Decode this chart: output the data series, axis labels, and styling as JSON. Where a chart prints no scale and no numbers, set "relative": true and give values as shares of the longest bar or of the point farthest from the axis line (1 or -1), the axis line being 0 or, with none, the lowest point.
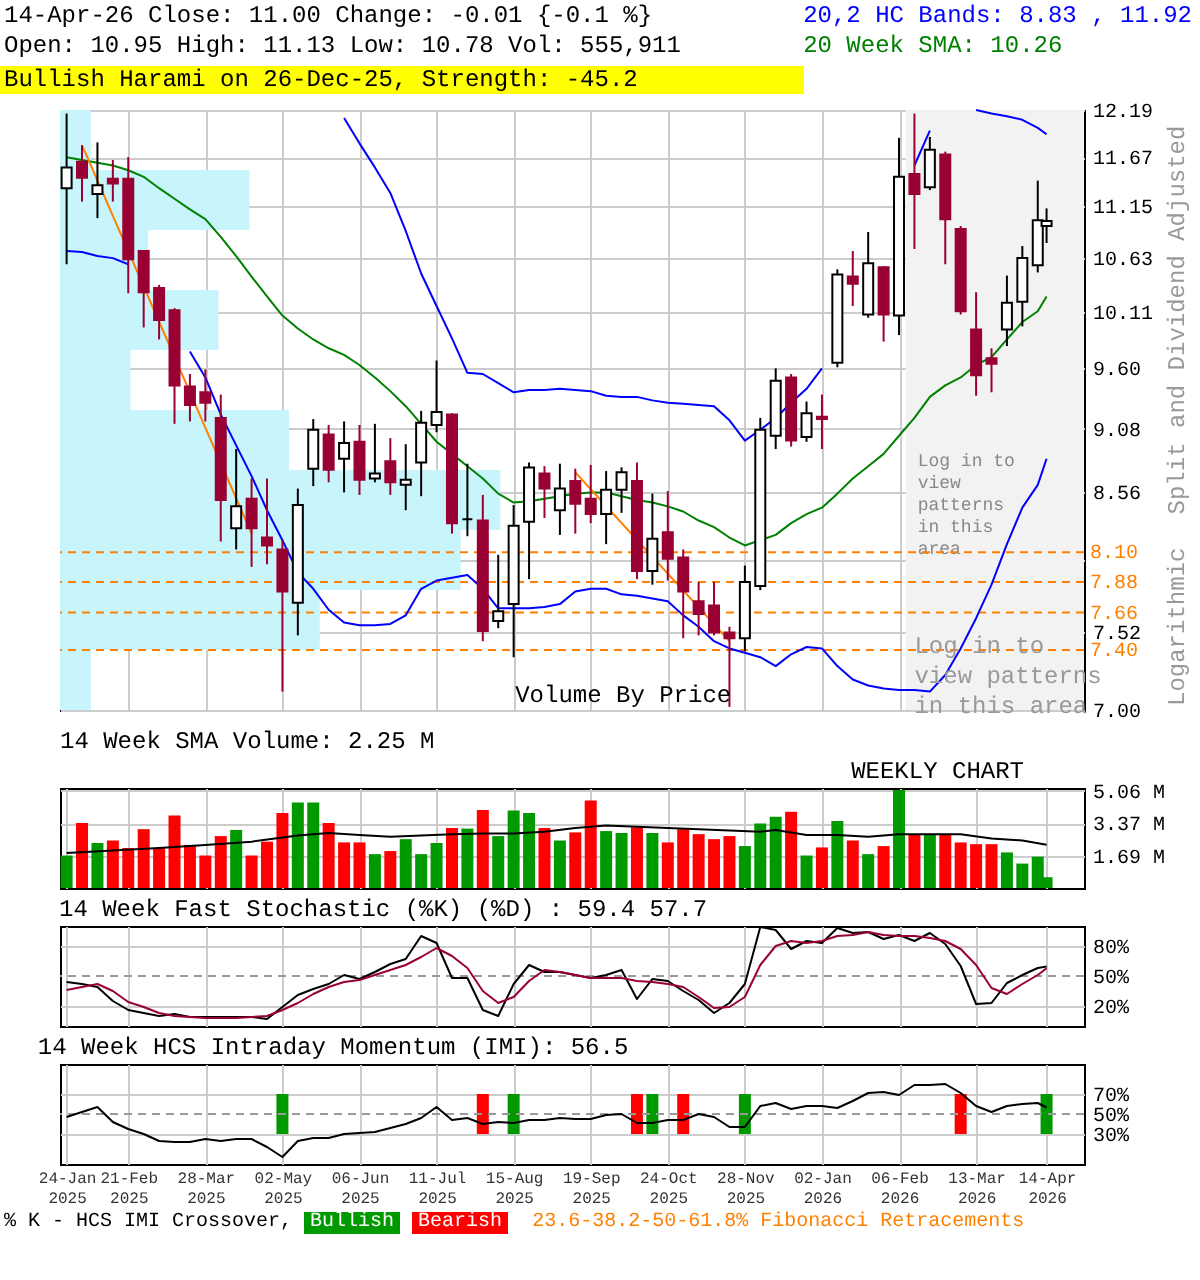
{
  "chart_data": [
    {
      "type": "candlestick",
      "title": "14-Apr-26 Close: 11.00 Change: -0.01 {-0.1 %}",
      "subtitle": "Open: 10.95 High: 11.13 Low: 10.78 Vol: 555,911",
      "ylabel": "Split and Dividend Adjusted",
      "annotations": [
        "Bullish Harami on 26-Dec-25, Strength: -45.2",
        "Logarithmic",
        "23.6-38.2-50-61.8% Fibonacci Retracements",
        "Volume By Price",
        {
          "text": "Log in to view patterns in this area",
          "x": "2026-02-13",
          "y": 7.5
        }
      ],
      "x": [
        "2025-01-24",
        "2025-01-31",
        "2025-02-07",
        "2025-02-14",
        "2025-02-21",
        "2025-02-28",
        "2025-03-07",
        "2025-03-14",
        "2025-03-21",
        "2025-03-28",
        "2025-04-04",
        "2025-04-11",
        "2025-04-18",
        "2025-04-25",
        "2025-05-02",
        "2025-05-09",
        "2025-05-16",
        "2025-05-23",
        "2025-05-30",
        "2025-06-06",
        "2025-06-13",
        "2025-06-20",
        "2025-06-27",
        "2025-07-04",
        "2025-07-11",
        "2025-07-18",
        "2025-07-25",
        "2025-08-01",
        "2025-08-08",
        "2025-08-15",
        "2025-08-22",
        "2025-08-29",
        "2025-09-05",
        "2025-09-12",
        "2025-09-19",
        "2025-09-26",
        "2025-10-03",
        "2025-10-10",
        "2025-10-17",
        "2025-10-24",
        "2025-10-31",
        "2025-11-07",
        "2025-11-14",
        "2025-11-21",
        "2025-11-28",
        "2025-12-05",
        "2025-12-12",
        "2025-12-19",
        "2025-12-26",
        "2026-01-02",
        "2026-01-09",
        "2026-01-16",
        "2026-01-23",
        "2026-01-30",
        "2026-02-06",
        "2026-02-13",
        "2026-02-20",
        "2026-02-27",
        "2026-03-06",
        "2026-03-13",
        "2026-03-20",
        "2026-03-27",
        "2026-04-03",
        "2026-04-10",
        "2026-04-14"
      ],
      "ohlc": [
        [
          11.34,
          12.15,
          10.57,
          11.56
        ],
        [
          11.62,
          11.8,
          11.2,
          11.45
        ],
        [
          11.28,
          11.83,
          11.03,
          11.37
        ],
        [
          11.44,
          11.64,
          11.2,
          11.39
        ],
        [
          11.44,
          11.67,
          10.29,
          10.62
        ],
        [
          10.7,
          10.71,
          9.97,
          10.3
        ],
        [
          10.34,
          10.37,
          9.86,
          10.04
        ],
        [
          10.13,
          10.15,
          9.12,
          9.45
        ],
        [
          9.44,
          9.55,
          9.14,
          9.28
        ],
        [
          9.39,
          9.59,
          9.14,
          9.3
        ],
        [
          9.17,
          9.37,
          8.18,
          8.5
        ],
        [
          8.28,
          8.91,
          8.12,
          8.45
        ],
        [
          8.51,
          8.67,
          7.99,
          8.28
        ],
        [
          8.21,
          8.67,
          8.01,
          8.15
        ],
        [
          8.12,
          8.19,
          7.12,
          7.81
        ],
        [
          7.73,
          8.59,
          7.5,
          8.46
        ],
        [
          8.75,
          9.16,
          8.61,
          9.07
        ],
        [
          9.03,
          9.11,
          8.64,
          8.74
        ],
        [
          8.83,
          9.14,
          8.56,
          8.96
        ],
        [
          8.97,
          9.11,
          8.54,
          8.66
        ],
        [
          8.67,
          9.12,
          8.64,
          8.71
        ],
        [
          8.81,
          9.0,
          8.54,
          8.64
        ],
        [
          8.62,
          8.95,
          8.42,
          8.66
        ],
        [
          8.8,
          9.23,
          8.53,
          9.13
        ],
        [
          9.11,
          9.67,
          9.05,
          9.22
        ],
        [
          9.2,
          9.21,
          8.24,
          8.32
        ],
        [
          8.35,
          8.79,
          8.22,
          8.35
        ],
        [
          8.34,
          8.54,
          7.46,
          7.53
        ],
        [
          7.6,
          8.08,
          7.55,
          7.67
        ],
        [
          7.72,
          8.46,
          7.35,
          8.3
        ],
        [
          8.33,
          8.8,
          7.9,
          8.76
        ],
        [
          8.71,
          8.77,
          8.36,
          8.59
        ],
        [
          8.42,
          8.79,
          8.23,
          8.59
        ],
        [
          8.65,
          8.75,
          8.24,
          8.47
        ],
        [
          8.51,
          8.78,
          8.32,
          8.39
        ],
        [
          8.39,
          8.73,
          8.16,
          8.58
        ],
        [
          8.58,
          8.76,
          8.4,
          8.72
        ],
        [
          8.65,
          8.8,
          7.9,
          7.96
        ],
        [
          7.96,
          8.55,
          7.86,
          8.2
        ],
        [
          8.25,
          8.57,
          7.89,
          8.05
        ],
        [
          8.06,
          8.12,
          7.48,
          7.81
        ],
        [
          7.74,
          7.88,
          7.5,
          7.65
        ],
        [
          7.71,
          7.88,
          7.5,
          7.52
        ],
        [
          7.52,
          7.56,
          7.02,
          7.48
        ],
        [
          7.48,
          8.0,
          7.39,
          7.88
        ],
        [
          7.85,
          9.17,
          7.82,
          9.07
        ],
        [
          9.02,
          9.6,
          8.91,
          9.49
        ],
        [
          9.52,
          9.55,
          8.93,
          8.98
        ],
        [
          9.01,
          9.31,
          8.97,
          9.21
        ],
        [
          9.18,
          9.37,
          8.91,
          9.16
        ],
        [
          9.65,
          10.52,
          9.61,
          10.47
        ],
        [
          10.45,
          10.7,
          10.17,
          10.38
        ],
        [
          10.09,
          10.89,
          10.06,
          10.58
        ],
        [
          10.54,
          10.55,
          9.84,
          10.09
        ],
        [
          10.08,
          11.88,
          9.9,
          11.46
        ],
        [
          11.49,
          12.15,
          10.72,
          11.28
        ],
        [
          11.35,
          11.89,
          11.32,
          11.75
        ],
        [
          11.7,
          11.73,
          10.57,
          11.02
        ],
        [
          10.92,
          10.95,
          10.09,
          10.12
        ],
        [
          9.95,
          10.3,
          9.36,
          9.54
        ],
        [
          9.69,
          9.78,
          9.39,
          9.64
        ],
        [
          9.95,
          10.46,
          9.8,
          10.2
        ],
        [
          10.21,
          10.75,
          9.98,
          10.63
        ],
        [
          10.56,
          11.42,
          10.49,
          11.01
        ],
        [
          10.95,
          11.13,
          10.78,
          11.0
        ]
      ],
      "series": [
        {
          "name": "20,2 HC Bands: 8.83 , 11.92",
          "type": "line",
          "color": "#0000ff",
          "values": [
            null,
            null,
            null,
            null,
            null,
            null,
            null,
            null,
            null,
            null,
            null,
            null,
            null,
            null,
            null,
            null,
            null,
            null,
            12.1,
            11.82,
            11.56,
            11.29,
            10.9,
            10.48,
            10.17,
            9.87,
            9.56,
            9.55,
            9.47,
            9.39,
            9.41,
            9.41,
            9.42,
            9.41,
            9.4,
            9.36,
            9.35,
            9.35,
            9.32,
            9.3,
            9.29,
            9.28,
            9.27,
            9.15,
            8.98,
            9.07,
            9.17,
            9.3,
            9.42,
            9.6,
            null,
            null,
            null,
            null,
            null,
            11.58,
            11.96,
            null,
            null,
            12.19,
            12.15,
            12.12,
            12.08,
            11.99,
            11.92
          ]
        },
        {
          "type": "line",
          "color": "#0000ff",
          "values": [
            10.7,
            10.69,
            10.65,
            10.63,
            10.57,
            null,
            null,
            null,
            9.75,
            9.52,
            9.2,
            8.94,
            8.69,
            8.42,
            8.19,
            7.95,
            7.83,
            7.68,
            7.59,
            7.57,
            7.57,
            7.58,
            7.64,
            7.83,
            7.89,
            7.91,
            7.93,
            7.83,
            7.69,
            7.69,
            7.69,
            7.7,
            7.72,
            7.81,
            7.83,
            7.83,
            7.79,
            7.78,
            7.76,
            7.74,
            7.64,
            7.56,
            7.46,
            7.41,
            7.38,
            7.35,
            7.29,
            7.37,
            7.42,
            7.41,
            7.29,
            7.2,
            7.16,
            7.14,
            7.13,
            7.13,
            7.12,
            7.23,
            7.41,
            7.62,
            7.86,
            8.16,
            8.44,
            8.62,
            8.83
          ]
        },
        {
          "name": "20 Week SMA: 10.26",
          "type": "line",
          "color": "#008000",
          "values": [
            11.67,
            11.64,
            11.61,
            11.58,
            11.53,
            11.46,
            11.34,
            11.23,
            11.12,
            11.02,
            10.84,
            10.65,
            10.45,
            10.26,
            10.08,
            9.96,
            9.86,
            9.78,
            9.72,
            9.63,
            9.52,
            9.4,
            9.27,
            9.12,
            8.97,
            8.87,
            8.77,
            8.67,
            8.55,
            8.48,
            8.49,
            8.51,
            8.53,
            8.55,
            8.56,
            8.56,
            8.53,
            8.5,
            8.48,
            8.45,
            8.41,
            8.34,
            8.29,
            8.21,
            8.15,
            8.19,
            8.23,
            8.32,
            8.39,
            8.44,
            8.55,
            8.67,
            8.77,
            8.87,
            9.02,
            9.17,
            9.35,
            9.45,
            9.52,
            9.63,
            9.7,
            9.86,
            10.02,
            10.12,
            10.26
          ]
        },
        {
          "type": "line",
          "color": "#ff8000",
          "x": [
            "2025-01-31",
            "2025-04-18"
          ],
          "values": [
            11.8,
            8.24
          ]
        },
        {
          "type": "line",
          "color": "#ff8000",
          "x": [
            "2025-09-12",
            "2025-11-21"
          ],
          "values": [
            8.72,
            7.46
          ]
        }
      ],
      "xlim": [
        "2025-01-21",
        "2026-05-01"
      ],
      "xticks": [
        "2025-01-24",
        "2025-02-21",
        "2025-03-28",
        "2025-05-02",
        "2025-06-06",
        "2025-07-11",
        "2025-08-15",
        "2025-09-19",
        "2025-10-24",
        "2025-11-28",
        "2026-01-02",
        "2026-02-06",
        "2026-03-13",
        "2026-04-14"
      ],
      "ylim": [
        7.0,
        12.19
      ],
      "yticks": [
        12.19,
        11.67,
        11.15,
        10.63,
        10.11,
        {
          "value": 9.6,
          "label": "9.60"
        },
        9.08,
        8.56,
        {
          "value": 8.04,
          "label": null
        },
        7.52,
        {
          "value": 7,
          "label": "7.00"
        }
      ],
      "log": true,
      "grid": true,
      "legend": "top right",
      "tick_labels": "y",
      "ref_lines": [
        {
          "axis": "y",
          "value": 8.1,
          "label": "8.10",
          "color": "#ff8000",
          "line_style": "dashed"
        },
        {
          "axis": "y",
          "value": 7.88,
          "label": "7.88",
          "color": "#ff8000",
          "line_style": "dashed"
        },
        {
          "axis": "y",
          "value": 7.66,
          "label": "7.66",
          "color": "#ff8000",
          "line_style": "dashed"
        },
        {
          "axis": "y",
          "value": 7.4,
          "label": "7.40",
          "color": "#ff8000",
          "line_style": "dashed"
        }
      ],
      "bands": [
        {
          "axis": "x",
          "from": "2026-02-09",
          "to": "2026-05-01",
          "label": "Log in to view patterns in this area",
          "color": "#f2f2f2"
        }
      ]
    },
    {
      "type": "bar",
      "orientation": "horizontal",
      "relative": true,
      "categories": [
        null,
        null,
        null,
        null,
        null,
        null,
        null,
        null,
        null,
        null
      ],
      "values": [
        0.07,
        0.43,
        0.2,
        0.36,
        0.16,
        0.52,
        1,
        0.91,
        0.59,
        0.07
      ],
      "color": "#c8f4fb"
    },
    {
      "type": "bar",
      "title": "14 Week SMA Volume: 2.25 M",
      "annotations": [
        "WEEKLY CHART"
      ],
      "x": [
        "2025-01-24",
        "2025-01-31",
        "2025-02-07",
        "2025-02-14",
        "2025-02-21",
        "2025-02-28",
        "2025-03-07",
        "2025-03-14",
        "2025-03-21",
        "2025-03-28",
        "2025-04-04",
        "2025-04-11",
        "2025-04-18",
        "2025-04-25",
        "2025-05-02",
        "2025-05-09",
        "2025-05-16",
        "2025-05-23",
        "2025-05-30",
        "2025-06-06",
        "2025-06-13",
        "2025-06-20",
        "2025-06-27",
        "2025-07-04",
        "2025-07-11",
        "2025-07-18",
        "2025-07-25",
        "2025-08-01",
        "2025-08-08",
        "2025-08-15",
        "2025-08-22",
        "2025-08-29",
        "2025-09-05",
        "2025-09-12",
        "2025-09-19",
        "2025-09-26",
        "2025-10-03",
        "2025-10-10",
        "2025-10-17",
        "2025-10-24",
        "2025-10-31",
        "2025-11-07",
        "2025-11-14",
        "2025-11-21",
        "2025-11-28",
        "2025-12-05",
        "2025-12-12",
        "2025-12-19",
        "2025-12-26",
        "2026-01-02",
        "2026-01-09",
        "2026-01-16",
        "2026-01-23",
        "2026-01-30",
        "2026-02-06",
        "2026-02-13",
        "2026-02-20",
        "2026-02-27",
        "2026-03-06",
        "2026-03-13",
        "2026-03-20",
        "2026-03-27",
        "2026-04-03",
        "2026-04-10",
        "2026-04-14"
      ],
      "series": [
        {
          "type": "bar",
          "colors": [
            "#009900",
            "#ff0000",
            "#009900",
            "#ff0000",
            "#ff0000",
            "#ff0000",
            "#ff0000",
            "#ff0000",
            "#ff0000",
            "#ff0000",
            "#ff0000",
            "#009900",
            "#ff0000",
            "#ff0000",
            "#ff0000",
            "#009900",
            "#009900",
            "#ff0000",
            "#ff0000",
            "#ff0000",
            "#009900",
            "#ff0000",
            "#009900",
            "#009900",
            "#009900",
            "#ff0000",
            "#009900",
            "#ff0000",
            "#009900",
            "#009900",
            "#009900",
            "#ff0000",
            "#009900",
            "#ff0000",
            "#ff0000",
            "#009900",
            "#009900",
            "#ff0000",
            "#009900",
            "#ff0000",
            "#ff0000",
            "#ff0000",
            "#ff0000",
            "#ff0000",
            "#009900",
            "#009900",
            "#009900",
            "#ff0000",
            "#009900",
            "#ff0000",
            "#009900",
            "#ff0000",
            "#009900",
            "#ff0000",
            "#009900",
            "#ff0000",
            "#009900",
            "#ff0000",
            "#ff0000",
            "#ff0000",
            "#ff0000",
            "#009900",
            "#009900",
            "#009900",
            "#009900"
          ],
          "values": [
            1.69,
            3.38,
            2.34,
            2.47,
            2.08,
            3.06,
            2.08,
            3.77,
            2.24,
            1.69,
            2.7,
            3.02,
            1.69,
            2.41,
            3.9,
            4.45,
            4.45,
            3.38,
            2.37,
            2.37,
            1.76,
            1.92,
            2.54,
            1.76,
            2.34,
            3.12,
            3.09,
            4.06,
            2.7,
            4.03,
            3.9,
            3.12,
            2.47,
            2.89,
            4.55,
            2.96,
            2.86,
            3.15,
            2.86,
            2.37,
            3.06,
            2.8,
            2.54,
            2.7,
            2.18,
            3.35,
            3.71,
            3.97,
            1.69,
            2.11,
            3.48,
            2.47,
            1.76,
            2.18,
            5.1,
            2.8,
            2.8,
            2.8,
            2.37,
            2.28,
            2.28,
            1.85,
            1.27,
            1.63,
            0.56
          ]
        },
        {
          "type": "line",
          "color": "#000000",
          "x": [
            "2025-01-24",
            "2025-02-14",
            "2025-03-07",
            "2025-03-28",
            "2025-04-18",
            "2025-05-09",
            "2025-05-23",
            "2025-06-06",
            "2025-06-20",
            "2025-07-04",
            "2025-07-18",
            "2025-08-01",
            "2025-08-15",
            "2025-08-29",
            "2025-09-12",
            "2025-09-26",
            "2025-10-10",
            "2025-10-24",
            "2025-11-07",
            "2025-11-21",
            "2025-12-05",
            "2025-12-12",
            "2025-12-26",
            "2026-01-09",
            "2026-01-23",
            "2026-02-06",
            "2026-02-20",
            "2026-03-06",
            "2026-03-20",
            "2026-04-03",
            "2026-04-14"
          ],
          "values": [
            1.82,
            1.95,
            2.08,
            2.24,
            2.41,
            2.73,
            2.86,
            2.76,
            2.67,
            2.73,
            2.8,
            2.83,
            2.83,
            2.93,
            3.12,
            3.25,
            3.19,
            3.12,
            3.06,
            2.99,
            2.93,
            3.02,
            2.76,
            2.76,
            2.67,
            2.8,
            2.8,
            2.8,
            2.57,
            2.47,
            2.25
          ]
        }
      ],
      "xlim": [
        "2025-01-21",
        "2026-05-01"
      ],
      "xticks": [
        "2025-01-24",
        "2025-02-21",
        "2025-03-28",
        "2025-05-02",
        "2025-06-06",
        "2025-07-11",
        "2025-08-15",
        "2025-09-19",
        "2025-10-24",
        "2025-11-28",
        "2026-01-02",
        "2026-02-06",
        "2026-03-13",
        "2026-04-14"
      ],
      "ylim": [
        0,
        5.2
      ],
      "yticks": [
        {
          "value": 5.06,
          "label": "5.06 M"
        },
        {
          "value": 3.37,
          "label": "3.37 M"
        },
        {
          "value": 1.69,
          "label": "1.69 M"
        }
      ],
      "grid": true,
      "tick_labels": "y"
    },
    {
      "type": "line",
      "title": "14 Week Fast Stochastic (%K) (%D) : 59.4 57.7",
      "x": [
        "2025-01-24",
        "2025-01-31",
        "2025-02-07",
        "2025-02-14",
        "2025-02-21",
        "2025-02-28",
        "2025-03-07",
        "2025-03-14",
        "2025-03-21",
        "2025-03-28",
        "2025-04-04",
        "2025-04-11",
        "2025-04-18",
        "2025-04-25",
        "2025-05-02",
        "2025-05-09",
        "2025-05-16",
        "2025-05-23",
        "2025-05-30",
        "2025-06-06",
        "2025-06-13",
        "2025-06-20",
        "2025-06-27",
        "2025-07-04",
        "2025-07-11",
        "2025-07-18",
        "2025-07-25",
        "2025-08-01",
        "2025-08-08",
        "2025-08-15",
        "2025-08-22",
        "2025-08-29",
        "2025-09-05",
        "2025-09-12",
        "2025-09-19",
        "2025-09-26",
        "2025-10-03",
        "2025-10-10",
        "2025-10-17",
        "2025-10-24",
        "2025-10-31",
        "2025-11-07",
        "2025-11-14",
        "2025-11-21",
        "2025-11-28",
        "2025-12-05",
        "2025-12-12",
        "2025-12-19",
        "2025-12-26",
        "2026-01-02",
        "2026-01-09",
        "2026-01-16",
        "2026-01-23",
        "2026-01-30",
        "2026-02-06",
        "2026-02-13",
        "2026-02-20",
        "2026-02-27",
        "2026-03-06",
        "2026-03-13",
        "2026-03-20",
        "2026-03-27",
        "2026-04-03",
        "2026-04-10",
        "2026-04-14"
      ],
      "series": [
        {
          "color": "#000000",
          "values": [
            44,
            42,
            39,
            25,
            16,
            13,
            10,
            12,
            9,
            9,
            9,
            9,
            9,
            7,
            19,
            31,
            37,
            42,
            51,
            47,
            54,
            62,
            67,
            90,
            83,
            48,
            48,
            16,
            10,
            42,
            61,
            54,
            54,
            51,
            48,
            51,
            56,
            27,
            47,
            45,
            35,
            26,
            13,
            23,
            42,
            99,
            96,
            77,
            85,
            83,
            98,
            93,
            94,
            87,
            91,
            85,
            93,
            82,
            60,
            22,
            23,
            43,
            51,
            58,
            59.4
          ]
        },
        {
          "color": "#990033",
          "values": [
            36,
            39,
            42,
            35,
            24,
            19,
            13,
            10,
            9,
            8,
            8,
            8,
            9,
            10,
            16,
            23,
            32,
            39,
            44,
            46,
            51,
            56,
            61,
            69,
            78,
            70,
            58,
            35,
            23,
            29,
            45,
            56,
            54,
            51,
            48,
            48,
            48,
            45,
            44,
            42,
            39,
            29,
            18,
            19,
            29,
            61,
            80,
            85,
            83,
            85,
            90,
            91,
            94,
            91,
            90,
            90,
            88,
            85,
            77,
            61,
            38,
            32,
            42,
            51,
            57.7
          ]
        }
      ],
      "xlim": [
        "2025-01-21",
        "2026-05-01"
      ],
      "xticks": [
        "2025-01-24",
        "2025-02-21",
        "2025-03-28",
        "2025-05-02",
        "2025-06-06",
        "2025-07-11",
        "2025-08-15",
        "2025-09-19",
        "2025-10-24",
        "2025-11-28",
        "2026-01-02",
        "2026-02-06",
        "2026-03-13",
        "2026-04-14"
      ],
      "ylim": [
        0,
        100
      ],
      "yticks": [
        {
          "value": 80,
          "label": "80%"
        },
        {
          "value": 50,
          "label": "50%"
        },
        {
          "value": 20,
          "label": "20%"
        }
      ],
      "ref_lines": [
        {
          "axis": "y",
          "value": 50,
          "color": "#999999",
          "line_style": "dashed"
        }
      ],
      "grid": true,
      "tick_labels": "y"
    },
    {
      "type": "line",
      "title": "14 Week HCS Intraday Momentum (IMI): 56.5",
      "legend_title": "% K - HCS IMI Crossover,",
      "legend": "bottom",
      "x": [
        "2025-01-24",
        "2025-01-31",
        "2025-02-07",
        "2025-02-14",
        "2025-02-21",
        "2025-02-28",
        "2025-03-07",
        "2025-03-14",
        "2025-03-21",
        "2025-03-28",
        "2025-04-04",
        "2025-04-11",
        "2025-04-18",
        "2025-04-25",
        "2025-05-02",
        "2025-05-09",
        "2025-05-16",
        "2025-05-23",
        "2025-05-30",
        "2025-06-06",
        "2025-06-13",
        "2025-06-20",
        "2025-06-27",
        "2025-07-04",
        "2025-07-11",
        "2025-07-18",
        "2025-07-25",
        "2025-08-01",
        "2025-08-08",
        "2025-08-15",
        "2025-08-22",
        "2025-08-29",
        "2025-09-05",
        "2025-09-12",
        "2025-09-19",
        "2025-09-26",
        "2025-10-03",
        "2025-10-10",
        "2025-10-17",
        "2025-10-24",
        "2025-10-31",
        "2025-11-07",
        "2025-11-14",
        "2025-11-21",
        "2025-11-28",
        "2025-12-05",
        "2025-12-12",
        "2025-12-19",
        "2025-12-26",
        "2026-01-02",
        "2026-01-09",
        "2026-01-16",
        "2026-01-23",
        "2026-01-30",
        "2026-02-06",
        "2026-02-13",
        "2026-02-20",
        "2026-02-27",
        "2026-03-06",
        "2026-03-13",
        "2026-03-20",
        "2026-03-27",
        "2026-04-03",
        "2026-04-10",
        "2026-04-14"
      ],
      "series": [
        {
          "type": "line",
          "color": "#000000",
          "values": [
            47,
            52,
            57,
            42,
            35,
            30,
            23,
            22,
            22,
            25,
            23,
            25,
            25,
            17,
            7,
            23,
            26,
            26,
            30,
            31,
            32,
            36,
            40,
            46,
            57,
            44,
            46,
            40,
            42,
            41,
            44,
            44,
            46,
            45,
            45,
            49,
            50,
            41,
            41,
            44,
            44,
            50,
            47,
            37,
            37,
            58,
            61,
            55,
            58,
            58,
            56,
            63,
            71,
            72,
            69,
            79,
            79,
            80,
            71,
            58,
            52,
            58,
            60,
            61,
            56.5
          ]
        },
        {
          "name": "Bullish",
          "type": "bar",
          "color": "#009900",
          "x": [
            "2025-05-02",
            "2025-08-15",
            "2025-10-17",
            "2025-11-28",
            "2026-04-14"
          ],
          "base": [
            30,
            30,
            30,
            30,
            30
          ],
          "values": [
            40,
            40,
            40,
            40,
            40
          ]
        },
        {
          "name": "Bearish",
          "type": "bar",
          "color": "#ff0000",
          "x": [
            "2025-08-01",
            "2025-10-10",
            "2025-10-31",
            "2026-03-06"
          ],
          "base": [
            30,
            30,
            30,
            30
          ],
          "values": [
            40,
            40,
            40,
            40
          ]
        }
      ],
      "xlim": [
        "2025-01-21",
        "2026-05-01"
      ],
      "xticks": [
        {
          "value": "2025-01-24",
          "label": "24-Jan 2025"
        },
        {
          "value": "2025-02-21",
          "label": "21-Feb 2025"
        },
        {
          "value": "2025-03-28",
          "label": "28-Mar 2025"
        },
        {
          "value": "2025-05-02",
          "label": "02-May 2025"
        },
        {
          "value": "2025-06-06",
          "label": "06-Jun 2025"
        },
        {
          "value": "2025-07-11",
          "label": "11-Jul 2025"
        },
        {
          "value": "2025-08-15",
          "label": "15-Aug 2025"
        },
        {
          "value": "2025-09-19",
          "label": "19-Sep 2025"
        },
        {
          "value": "2025-10-24",
          "label": "24-Oct 2025"
        },
        {
          "value": "2025-11-28",
          "label": "28-Nov 2025"
        },
        {
          "value": "2026-01-02",
          "label": "02-Jan 2026"
        },
        {
          "value": "2026-02-06",
          "label": "06-Feb 2026"
        },
        {
          "value": "2026-03-13",
          "label": "13-Mar 2026"
        },
        {
          "value": "2026-04-14",
          "label": "14-Apr 2026"
        }
      ],
      "ylim": [
        0,
        100
      ],
      "yticks": [
        {
          "value": 70,
          "label": "70%"
        },
        {
          "value": 50,
          "label": "50%"
        },
        {
          "value": 30,
          "label": "30%"
        }
      ],
      "ref_lines": [
        {
          "axis": "y",
          "value": 50,
          "color": "#999999",
          "line_style": "dashed"
        }
      ],
      "grid": true
    }
  ]
}
